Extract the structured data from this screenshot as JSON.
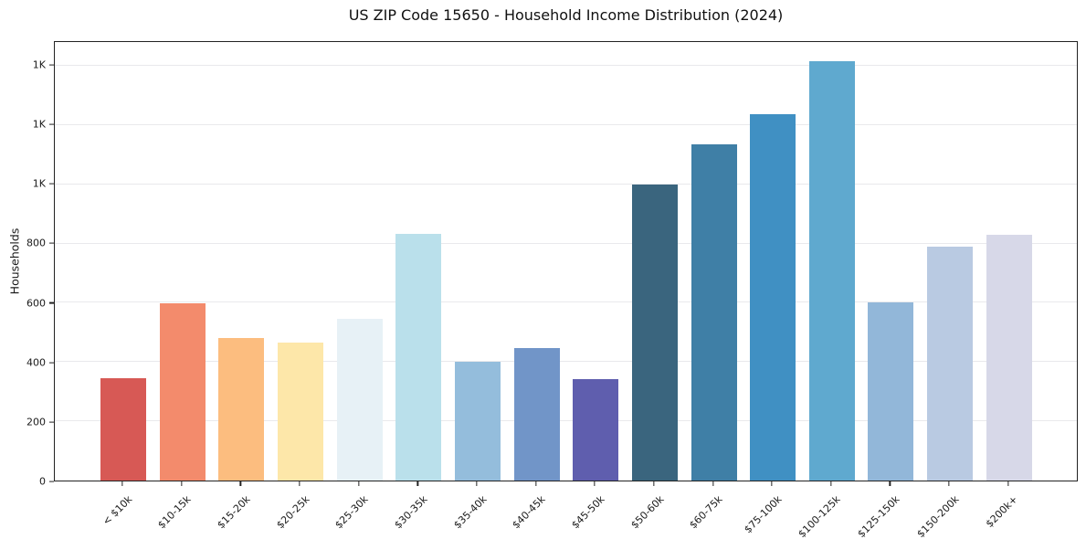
{
  "figure": {
    "title": "US ZIP Code 15650 - Household Income Distribution (2024)"
  },
  "chart_data": {
    "type": "bar",
    "title": "US ZIP Code 15650 - Household Income Distribution (2024)",
    "xlabel": "",
    "ylabel": "Households",
    "categories": [
      "< $10k",
      "$10-15k",
      "$15-20k",
      "$20-25k",
      "$25-30k",
      "$30-35k",
      "$35-40k",
      "$40-45k",
      "$45-50k",
      "$50-60k",
      "$60-75k",
      "$75-100k",
      "$100-125k",
      "$125-150k",
      "$150-200k",
      "$200k+"
    ],
    "values": [
      345,
      595,
      480,
      465,
      545,
      830,
      400,
      445,
      340,
      995,
      1130,
      1230,
      1410,
      600,
      785,
      825
    ],
    "bar_colors": [
      "#d6544f",
      "#f38767",
      "#fcbb7b",
      "#fde6a6",
      "#e6f1f6",
      "#b8dfea",
      "#91bbdb",
      "#6c92c6",
      "#5a59ab",
      "#34607a",
      "#397ba3",
      "#3a8cc1",
      "#5aa6cd",
      "#8eb5d8",
      "#b7c8e1",
      "#d6d7e7"
    ],
    "ylim": [
      0,
      1480
    ],
    "yticks": {
      "values": [
        0,
        200,
        400,
        600,
        800,
        1000,
        1200,
        1400
      ],
      "labels": [
        "0",
        "200",
        "400",
        "600",
        "800",
        "1K",
        "1K",
        "1K"
      ]
    },
    "grid": "horizontal-only",
    "legend": "none",
    "x_tick_rotation_deg": 45
  }
}
